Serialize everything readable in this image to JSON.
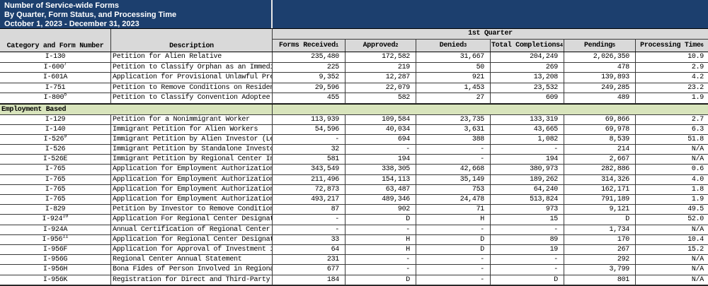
{
  "banner": {
    "line1": "Number of Service-wide Forms",
    "line2": "By Quarter, Form Status, and Processing Time",
    "line3": "October 1, 2023 - December 31, 2023"
  },
  "colors": {
    "banner_navy": "#1c3f6e",
    "header_gray": "#d9d9d9",
    "section_green": "#d8e4bc",
    "grid_line": "#3a3a3a"
  },
  "table": {
    "quarter_header": "1st Quarter",
    "col1_header": "Category and Form Number",
    "col2_header": "Description",
    "value_headers": [
      {
        "label": "Forms Received",
        "sup": "1"
      },
      {
        "label": "Approved",
        "sup": "2"
      },
      {
        "label": "Denied",
        "sup": "3"
      },
      {
        "label": "Total Completions",
        "sup": "4"
      },
      {
        "label": "Pending",
        "sup": "5"
      },
      {
        "label": "Processing Time",
        "sup": "6"
      }
    ],
    "rows": [
      {
        "form": "I-130",
        "sup": "",
        "desc": "Petition for Alien Relative",
        "values": [
          "235,480",
          "172,582",
          "31,667",
          "204,249",
          "2,026,350",
          "10.9"
        ]
      },
      {
        "form": "I-600",
        "sup": "7",
        "desc": "Petition to Classify Orphan as an Immediate Relative",
        "values": [
          "225",
          "219",
          "50",
          "269",
          "478",
          "2.9"
        ]
      },
      {
        "form": "I-601A",
        "sup": "",
        "desc": "Application for Provisional Unlawful Presence Waiver",
        "values": [
          "9,352",
          "12,287",
          "921",
          "13,208",
          "139,893",
          "4.2"
        ]
      },
      {
        "form": "I-751",
        "sup": "",
        "desc": "Petition to Remove Conditions on Residence",
        "values": [
          "29,596",
          "22,079",
          "1,453",
          "23,532",
          "249,285",
          "23.2"
        ]
      },
      {
        "form": "I-800",
        "sup": "8",
        "desc": "Petition to Classify Convention Adoptee as an Immediate Relative",
        "values": [
          "455",
          "582",
          "27",
          "609",
          "489",
          "1.9"
        ]
      },
      {
        "type": "section",
        "label": "Employment Based"
      },
      {
        "form": "I-129",
        "sup": "",
        "desc": "Petition for a Nonimmigrant Worker",
        "values": [
          "113,939",
          "109,584",
          "23,735",
          "133,319",
          "69,866",
          "2.7"
        ]
      },
      {
        "form": "I-140",
        "sup": "",
        "desc": "Immigrant Petition for Alien Workers",
        "values": [
          "54,596",
          "40,034",
          "3,631",
          "43,665",
          "69,978",
          "6.3"
        ]
      },
      {
        "form": "I-526",
        "sup": "9",
        "desc": "Immigrant Petition by Alien Investor (Legacy)",
        "values": [
          "-",
          "694",
          "388",
          "1,082",
          "8,539",
          "51.8"
        ]
      },
      {
        "form": "I-526",
        "sup": "",
        "desc": "Immigrant Petition by Standalone Investor",
        "values": [
          "32",
          "-",
          "-",
          "-",
          "214",
          "N/A"
        ]
      },
      {
        "form": "I-526E",
        "sup": "",
        "desc": "Immigrant Petition by Regional Center Investor",
        "values": [
          "581",
          "194",
          "-",
          "194",
          "2,667",
          "N/A"
        ]
      },
      {
        "form": "I-765",
        "sup": "",
        "desc": "Application for Employment Authorization (Asylum applicants)",
        "values": [
          "343,549",
          "338,305",
          "42,668",
          "380,973",
          "282,886",
          "0.6"
        ]
      },
      {
        "form": "I-765",
        "sup": "",
        "desc": "Application for Employment Authorization (Adjustment applicants)",
        "values": [
          "211,496",
          "154,113",
          "35,149",
          "189,262",
          "314,326",
          "4.0"
        ]
      },
      {
        "form": "I-765",
        "sup": "",
        "desc": "Application for Employment Authorization (DACA requestors)",
        "values": [
          "72,873",
          "63,487",
          "753",
          "64,240",
          "162,171",
          "1.8"
        ]
      },
      {
        "form": "I-765",
        "sup": "",
        "desc": "Application for Employment Authorization (All other applicants)",
        "values": [
          "493,217",
          "489,346",
          "24,478",
          "513,824",
          "791,189",
          "1.9"
        ]
      },
      {
        "form": "I-829",
        "sup": "",
        "desc": "Petition by Investor to Remove Conditions on Permanent Resident Status",
        "values": [
          "87",
          "902",
          "71",
          "973",
          "9,121",
          "49.5"
        ]
      },
      {
        "form": "I-924",
        "sup": "10",
        "desc": "Application For Regional Center Designation Under the Immigrant Investor Program",
        "values": [
          "-",
          "D",
          "H",
          "15",
          "D",
          "52.0"
        ]
      },
      {
        "form": "I-924A",
        "sup": "",
        "desc": "Annual Certification of Regional Center",
        "values": [
          "-",
          "-",
          "-",
          "-",
          "1,734",
          "N/A"
        ]
      },
      {
        "form": "I-956",
        "sup": "11",
        "desc": "Application for Regional Center Designation",
        "values": [
          "33",
          "H",
          "D",
          "89",
          "170",
          "10.4"
        ]
      },
      {
        "form": "I-956F",
        "sup": "",
        "desc": "Application for Approval of Investment in a Commercial Enterprise",
        "values": [
          "64",
          "H",
          "D",
          "19",
          "267",
          "15.2"
        ]
      },
      {
        "form": "I-956G",
        "sup": "",
        "desc": "Regional Center Annual Statement",
        "values": [
          "231",
          "-",
          "-",
          "-",
          "292",
          "N/A"
        ]
      },
      {
        "form": "I-956H",
        "sup": "",
        "desc": "Bona Fides of Person Involved in Regional Center Program",
        "values": [
          "677",
          "-",
          "-",
          "-",
          "3,799",
          "N/A"
        ]
      },
      {
        "form": "I-956K",
        "sup": "",
        "desc": "Registration for Direct and Third-Party Promoters",
        "values": [
          "184",
          "D",
          "-",
          "D",
          "801",
          "N/A"
        ]
      }
    ]
  }
}
